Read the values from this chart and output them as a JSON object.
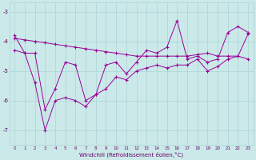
{
  "xlabel": "Windchill (Refroidissement éolien,°C)",
  "background_color": "#cbe9e9",
  "line_color": "#990099",
  "grid_color": "#aad4d4",
  "x_values": [
    0,
    1,
    2,
    3,
    4,
    5,
    6,
    7,
    8,
    9,
    10,
    11,
    12,
    13,
    14,
    15,
    16,
    17,
    18,
    19,
    20,
    21,
    22,
    23
  ],
  "y_zigzag": [
    -3.8,
    -4.4,
    -4.4,
    -6.3,
    -5.6,
    -4.7,
    -4.8,
    -6.0,
    -5.8,
    -4.8,
    -4.7,
    -5.1,
    -4.7,
    -4.3,
    -4.4,
    -4.2,
    -3.3,
    -4.6,
    -4.5,
    -4.7,
    -4.6,
    -3.7,
    -3.5,
    -3.7
  ],
  "y_upper": [
    -3.9,
    -3.95,
    -4.0,
    -4.05,
    -4.1,
    -4.15,
    -4.2,
    -4.25,
    -4.3,
    -4.35,
    -4.4,
    -4.45,
    -4.5,
    -4.5,
    -4.5,
    -4.5,
    -4.5,
    -4.5,
    -4.45,
    -4.4,
    -4.5,
    -4.5,
    -4.5,
    -3.75
  ],
  "y_lower": [
    -4.3,
    -4.4,
    -5.4,
    -7.0,
    -6.0,
    -5.9,
    -6.0,
    -6.2,
    -5.8,
    -5.6,
    -5.2,
    -5.3,
    -5.0,
    -4.9,
    -4.8,
    -4.9,
    -4.8,
    -4.8,
    -4.6,
    -5.0,
    -4.85,
    -4.6,
    -4.5,
    -4.6
  ],
  "ylim": [
    -7.5,
    -2.7
  ],
  "yticks": [
    -7,
    -6,
    -5,
    -4,
    -3
  ],
  "xlim": [
    -0.5,
    23.5
  ],
  "xticks": [
    0,
    1,
    2,
    3,
    4,
    5,
    6,
    7,
    8,
    9,
    10,
    11,
    12,
    13,
    14,
    15,
    16,
    17,
    18,
    19,
    20,
    21,
    22,
    23
  ]
}
